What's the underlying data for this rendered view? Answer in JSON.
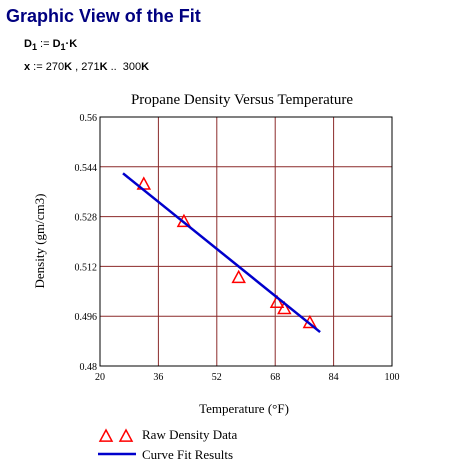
{
  "page": {
    "heading": "Graphic View of the Fit",
    "eq1": {
      "lhs_var": "D",
      "lhs_sub": "1",
      "assign": " := ",
      "rhs_var": "D",
      "rhs_sub": "1",
      "rhs_tail": "·K"
    },
    "eq2": {
      "var": "x",
      "assign": " := ",
      "start_num": "270",
      "start_unit": "K",
      "sep": " , ",
      "step_num": "271",
      "step_unit": "K",
      "range": " ..  ",
      "end_num": "300",
      "end_unit": "K"
    }
  },
  "chart_data": {
    "type": "line",
    "title": "Propane Density Versus Temperature",
    "xlabel": "Temperature (°F)",
    "ylabel": "Density (gm/cm3)",
    "xlim": [
      20,
      100
    ],
    "ylim": [
      0.48,
      0.56
    ],
    "x_ticks": [
      20,
      36,
      52,
      68,
      84,
      100
    ],
    "y_ticks": [
      0.48,
      0.496,
      0.512,
      0.528,
      0.544,
      0.56
    ],
    "x_tick_labels": [
      "20",
      "36",
      "52",
      "68",
      "84",
      "100"
    ],
    "y_tick_labels": [
      "0.48",
      "0.496",
      "0.512",
      "0.528",
      "0.544",
      "0.56"
    ],
    "grid": true,
    "legend_position": "bottom-left",
    "series": [
      {
        "name": "Raw Density Data",
        "style": "triangle-markers",
        "color": "#ff0000",
        "x": [
          32,
          43,
          58,
          68.5,
          70.5,
          77.5
        ],
        "y": [
          0.5385,
          0.5265,
          0.5085,
          0.5005,
          0.4985,
          0.494
        ]
      },
      {
        "name": "Curve Fit Results",
        "style": "line",
        "color": "#0000cc",
        "x": [
          26.3,
          80.3
        ],
        "y": [
          0.5419,
          0.4909
        ]
      }
    ]
  }
}
